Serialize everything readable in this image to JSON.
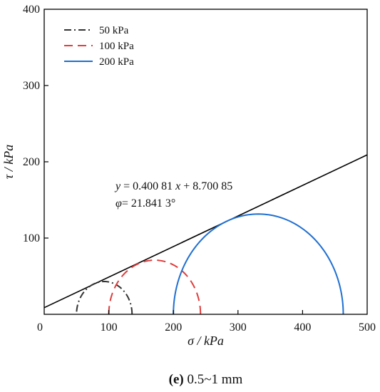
{
  "chart_data": {
    "type": "line",
    "title": "",
    "xlabel": "σ / kPa",
    "ylabel": "τ / kPa",
    "xlim": [
      0,
      500
    ],
    "ylim": [
      0,
      400
    ],
    "x_ticks": [
      0,
      100,
      200,
      300,
      400,
      500
    ],
    "y_ticks": [
      100,
      200,
      300,
      400
    ],
    "grid": false,
    "legend_position": "top-left",
    "series": [
      {
        "name": "50 kPa",
        "shape": "semicircle",
        "sigma_min": 50,
        "sigma_max": 136,
        "color": "#333333",
        "dash": "dash-dot"
      },
      {
        "name": "100 kPa",
        "shape": "semicircle",
        "sigma_min": 100,
        "sigma_max": 242,
        "color": "#e03c3c",
        "dash": "dashed"
      },
      {
        "name": "200 kPa",
        "shape": "semicircle",
        "sigma_min": 200,
        "sigma_max": 463,
        "color": "#1f6fd1",
        "dash": "solid"
      }
    ],
    "envelope": {
      "slope": 0.40081,
      "intercept": 8.70085,
      "x": [
        0,
        500
      ],
      "color": "#000000"
    },
    "annotations": {
      "equation_parts": [
        "y",
        " = 0.400 81 ",
        "x",
        " + 8.700 85"
      ],
      "phi_parts": [
        "φ",
        "= 21.841 3°"
      ]
    }
  },
  "caption": {
    "letter": "(e)",
    "text": " 0.5~1 mm"
  }
}
